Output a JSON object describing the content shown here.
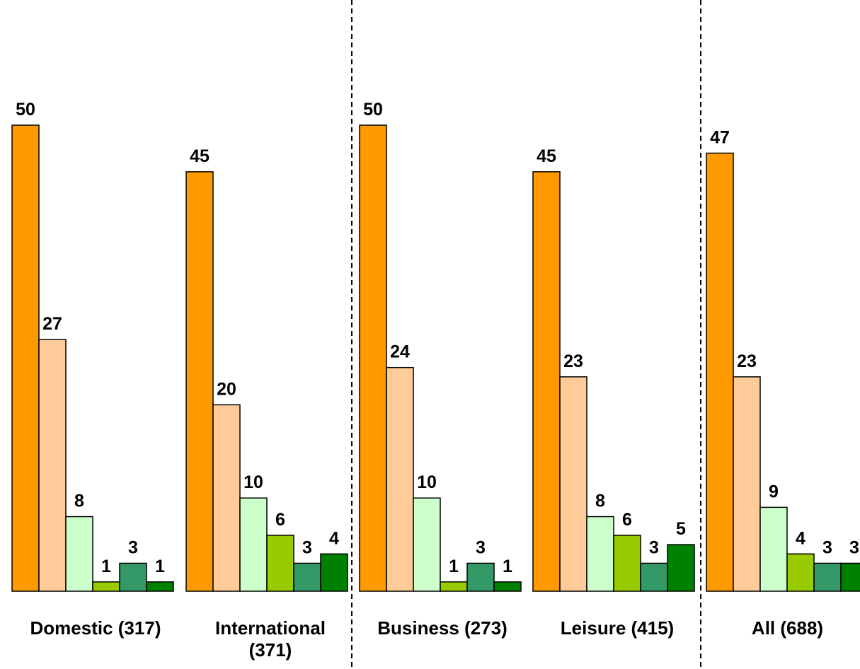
{
  "chart_data": {
    "type": "bar",
    "categories": [
      "Domestic (317)",
      "International (371)",
      "Business (273)",
      "Leisure (415)",
      "All (688)"
    ],
    "series": [
      {
        "color": "#FF9900",
        "values": [
          50,
          45,
          50,
          45,
          47
        ]
      },
      {
        "color": "#FFCC99",
        "values": [
          27,
          20,
          24,
          23,
          23
        ]
      },
      {
        "color": "#CCFFCC",
        "values": [
          8,
          10,
          10,
          8,
          9
        ]
      },
      {
        "color": "#99CC00",
        "values": [
          1,
          6,
          1,
          6,
          4
        ]
      },
      {
        "color": "#339966",
        "values": [
          3,
          3,
          3,
          3,
          3
        ]
      },
      {
        "color": "#008000",
        "values": [
          1,
          4,
          1,
          5,
          3
        ]
      }
    ],
    "title": "",
    "xlabel": "",
    "ylabel": "",
    "ylim": [
      0,
      50
    ],
    "grid": false,
    "legend": "none",
    "data_labels": true,
    "group_separators": "dashed lines between Domestic/International, International/Business... after International and after Leisure"
  }
}
